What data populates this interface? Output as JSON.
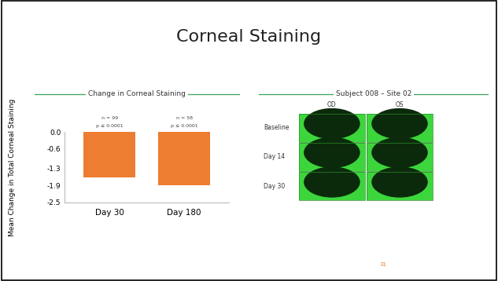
{
  "slide": {
    "title": "Corneal Staining",
    "page_number": "31"
  },
  "chart_data": {
    "type": "bar",
    "title": "Change in Corneal Staining",
    "y_label": "Mean Change in Total Corneal Staining",
    "categories": [
      "Day 30",
      "Day 180"
    ],
    "values": [
      -1.6,
      -1.9
    ],
    "color": "#ed7d31",
    "ylim": [
      -2.5,
      0.0
    ],
    "yticks": [
      0.0,
      -0.6,
      -1.3,
      -1.9,
      -2.5
    ],
    "bar_notes": [
      [
        "n = 99",
        "p ≤ 0.0001"
      ],
      [
        "n = 58",
        "p ≤ 0.0001"
      ]
    ]
  },
  "image_panel": {
    "title": "Subject 008 – Site 02",
    "columns": [
      "OD",
      "OS"
    ],
    "rows": [
      "Baseline",
      "Day 14",
      "Day 30"
    ]
  }
}
